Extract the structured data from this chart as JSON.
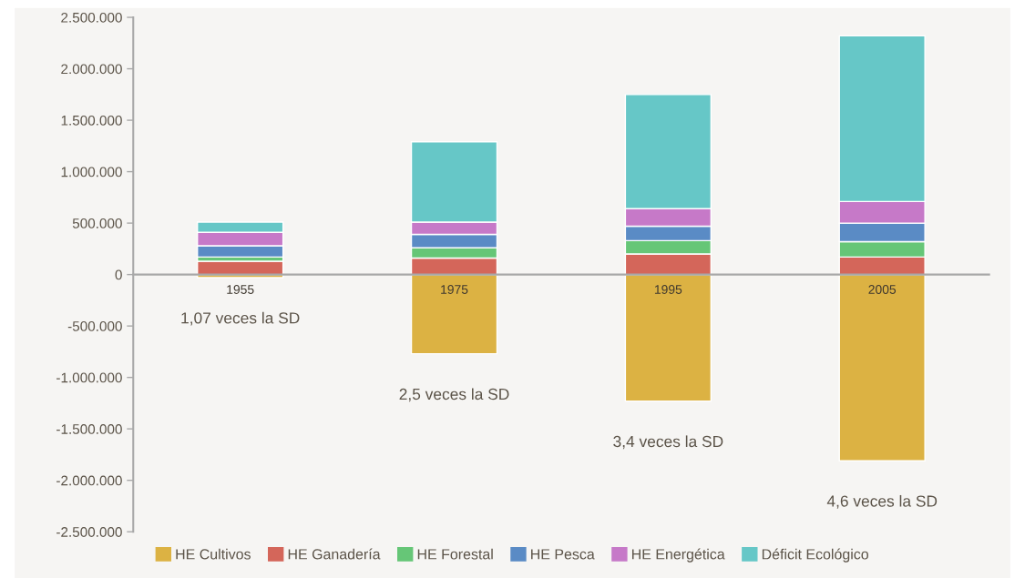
{
  "chart_data": {
    "type": "bar",
    "stacked": true,
    "categories": [
      "1955",
      "1975",
      "1995",
      "2005"
    ],
    "series": [
      {
        "name": "HE Cultivos",
        "color": "#dcb243",
        "values": [
          -30000,
          -770000,
          -1230000,
          -1810000
        ]
      },
      {
        "name": "HE Ganadería",
        "color": "#d4665a",
        "values": [
          130000,
          160000,
          200000,
          170000
        ]
      },
      {
        "name": "HE Forestal",
        "color": "#66c677",
        "values": [
          40000,
          100000,
          130000,
          150000
        ]
      },
      {
        "name": "HE Pesca",
        "color": "#5a8bc5",
        "values": [
          110000,
          130000,
          140000,
          180000
        ]
      },
      {
        "name": "HE Energética",
        "color": "#c679c8",
        "values": [
          130000,
          120000,
          170000,
          210000
        ]
      },
      {
        "name": "Déficit Ecológico",
        "color": "#66c7c7",
        "values": [
          100000,
          780000,
          1110000,
          1610000
        ]
      }
    ],
    "ylim": [
      -2500000,
      2500000
    ],
    "yticks": [
      {
        "value": -2500000,
        "label": "-2.500.000"
      },
      {
        "value": -2000000,
        "label": "-2.000.000"
      },
      {
        "value": -1500000,
        "label": "-1.500.000"
      },
      {
        "value": -1000000,
        "label": "-1.000.000"
      },
      {
        "value": -500000,
        "label": "-500.000"
      },
      0,
      {
        "value": 500000,
        "label": "500.000"
      },
      {
        "value": 1000000,
        "label": "1.000.000"
      },
      {
        "value": 1500000,
        "label": "1.500.000"
      },
      {
        "value": 2000000,
        "label": "2.000.000"
      },
      {
        "value": 2500000,
        "label": "2.500.000"
      }
    ],
    "annotations": [
      "1,07 veces la SD",
      "2,5 veces la SD",
      "3,4 veces la SD",
      "4,6 veces la SD"
    ],
    "legend": "bottom",
    "grid": false
  }
}
